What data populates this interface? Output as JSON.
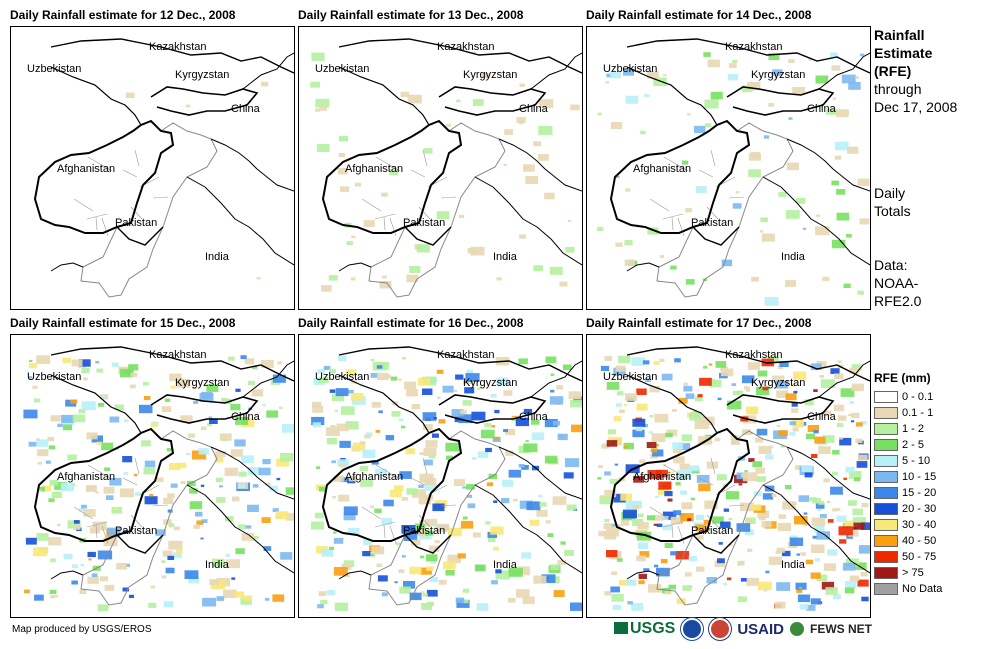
{
  "panels": [
    {
      "title": "Daily Rainfall estimate for 12 Dec., 2008",
      "intensity": 0
    },
    {
      "title": "Daily Rainfall estimate for 13 Dec., 2008",
      "intensity": 1
    },
    {
      "title": "Daily Rainfall estimate for 14 Dec., 2008",
      "intensity": 2
    },
    {
      "title": "Daily Rainfall estimate for 15 Dec., 2008",
      "intensity": 3
    },
    {
      "title": "Daily Rainfall estimate for 16 Dec., 2008",
      "intensity": 3
    },
    {
      "title": "Daily Rainfall estimate for 17 Dec., 2008",
      "intensity": 4
    }
  ],
  "labels": {
    "kazakhstan": "Kazakhstan",
    "uzbekistan": "Uzbekistan",
    "kyrgyzstan": "Kyrgyzstan",
    "china": "China",
    "afghanistan": "Afghanistan",
    "pakistan": "Pakistan",
    "india": "India"
  },
  "side": {
    "title_bold": [
      "Rainfall",
      "Estimate",
      "(RFE)"
    ],
    "title_rest": [
      "through",
      "Dec 17, 2008"
    ],
    "sub": [
      "Daily",
      "Totals"
    ],
    "data": [
      "Data:",
      "NOAA-",
      "RFE2.0"
    ]
  },
  "legend": {
    "title": "RFE (mm)",
    "items": [
      {
        "label": "0 - 0.1",
        "color": "#ffffff"
      },
      {
        "label": "0.1 - 1",
        "color": "#e8d8b4"
      },
      {
        "label": "1 - 2",
        "color": "#b4f0a0"
      },
      {
        "label": "2 - 5",
        "color": "#78e060"
      },
      {
        "label": "5 - 10",
        "color": "#b8f0f8"
      },
      {
        "label": "10 - 15",
        "color": "#7cb8f0"
      },
      {
        "label": "15 - 20",
        "color": "#3c88e8"
      },
      {
        "label": "20 - 30",
        "color": "#1450d8"
      },
      {
        "label": "30 - 40",
        "color": "#f8e878"
      },
      {
        "label": "40 - 50",
        "color": "#f8a010"
      },
      {
        "label": "50 - 75",
        "color": "#f02800"
      },
      {
        "label": "> 75",
        "color": "#a01818"
      },
      {
        "label": "No Data",
        "color": "#a0a0a0"
      }
    ]
  },
  "footer": "Map produced by USGS/EROS",
  "logos": [
    "USGS",
    "USAID",
    "FEWS NET"
  ]
}
